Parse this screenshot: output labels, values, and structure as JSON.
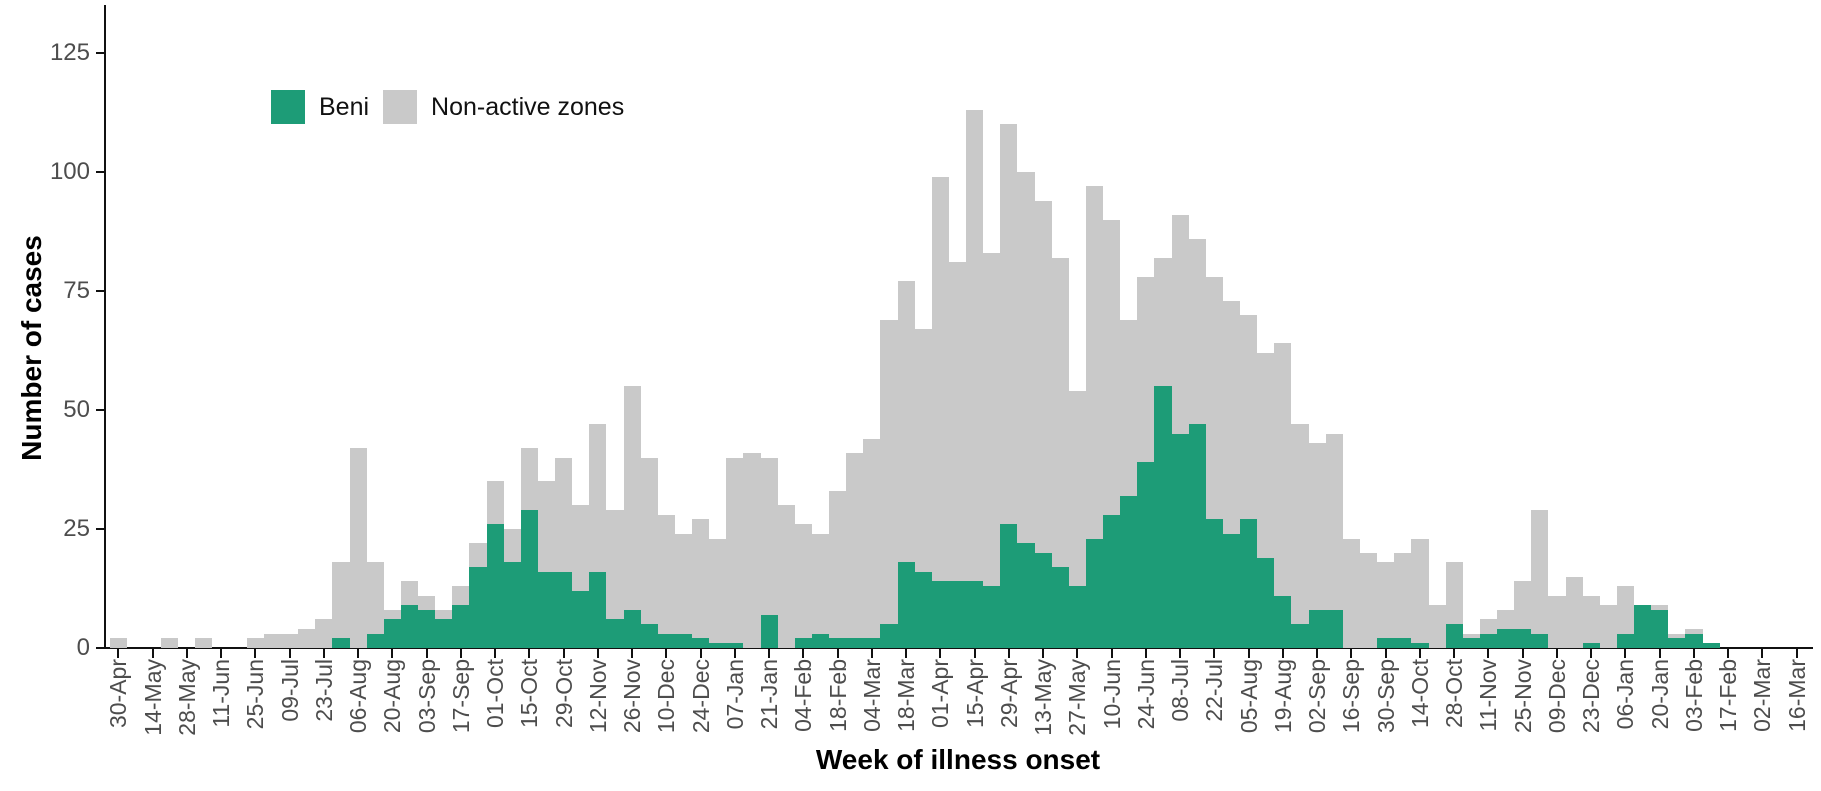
{
  "chart_data": {
    "type": "bar",
    "stacked": true,
    "title": "",
    "xlabel": "Week of illness onset",
    "ylabel": "Number of cases",
    "grid": false,
    "legend_position": "top-left-inside",
    "y_ticks": [
      0,
      25,
      50,
      75,
      100,
      125
    ],
    "ylim": [
      0,
      133
    ],
    "x_tick_every": 2,
    "categories": [
      "30-Apr",
      "07-May",
      "14-May",
      "21-May",
      "28-May",
      "04-Jun",
      "11-Jun",
      "18-Jun",
      "25-Jun",
      "02-Jul",
      "09-Jul",
      "16-Jul",
      "23-Jul",
      "30-Jul",
      "06-Aug",
      "13-Aug",
      "20-Aug",
      "27-Aug",
      "03-Sep",
      "10-Sep",
      "17-Sep",
      "24-Sep",
      "01-Oct",
      "08-Oct",
      "15-Oct",
      "22-Oct",
      "29-Oct",
      "05-Nov",
      "12-Nov",
      "19-Nov",
      "26-Nov",
      "03-Dec",
      "10-Dec",
      "17-Dec",
      "24-Dec",
      "31-Dec",
      "07-Jan",
      "14-Jan",
      "21-Jan",
      "28-Jan",
      "04-Feb",
      "11-Feb",
      "18-Feb",
      "25-Feb",
      "04-Mar",
      "11-Mar",
      "18-Mar",
      "25-Mar",
      "01-Apr",
      "08-Apr",
      "15-Apr",
      "22-Apr",
      "29-Apr",
      "06-May",
      "13-May",
      "20-May",
      "27-May",
      "03-Jun",
      "10-Jun",
      "17-Jun",
      "24-Jun",
      "01-Jul",
      "08-Jul",
      "15-Jul",
      "22-Jul",
      "29-Jul",
      "05-Aug",
      "12-Aug",
      "19-Aug",
      "26-Aug",
      "02-Sep",
      "09-Sep",
      "16-Sep",
      "23-Sep",
      "30-Sep",
      "07-Oct",
      "14-Oct",
      "21-Oct",
      "28-Oct",
      "04-Nov",
      "11-Nov",
      "18-Nov",
      "25-Nov",
      "02-Dec",
      "09-Dec",
      "16-Dec",
      "23-Dec",
      "30-Dec",
      "06-Jan",
      "13-Jan",
      "20-Jan",
      "27-Jan",
      "03-Feb",
      "10-Feb",
      "17-Feb",
      "24-Feb",
      "02-Mar",
      "09-Mar",
      "16-Mar"
    ],
    "series": [
      {
        "name": "Beni",
        "color": "#1d9c77",
        "values": [
          0,
          0,
          0,
          0,
          0,
          0,
          0,
          0,
          0,
          0,
          0,
          0,
          0,
          2,
          0,
          3,
          6,
          9,
          8,
          6,
          9,
          17,
          26,
          18,
          29,
          16,
          16,
          12,
          16,
          6,
          8,
          5,
          3,
          3,
          2,
          1,
          1,
          0,
          7,
          0,
          2,
          3,
          2,
          2,
          2,
          5,
          18,
          16,
          14,
          14,
          14,
          13,
          26,
          22,
          20,
          17,
          13,
          23,
          28,
          32,
          39,
          55,
          45,
          47,
          27,
          24,
          27,
          19,
          11,
          5,
          8,
          8,
          0,
          0,
          2,
          2,
          1,
          0,
          5,
          2,
          3,
          4,
          4,
          3,
          0,
          0,
          1,
          0,
          3,
          9,
          8,
          2,
          3,
          1,
          0,
          0,
          0,
          0,
          0
        ]
      },
      {
        "name": "Non-active zones",
        "color": "#c9c9c9",
        "values": [
          2,
          0,
          0,
          2,
          0,
          2,
          0,
          0,
          2,
          3,
          3,
          4,
          6,
          16,
          42,
          15,
          2,
          5,
          3,
          2,
          4,
          5,
          9,
          7,
          13,
          19,
          24,
          18,
          31,
          23,
          47,
          35,
          25,
          21,
          25,
          22,
          39,
          41,
          33,
          30,
          24,
          21,
          31,
          39,
          42,
          64,
          59,
          51,
          85,
          67,
          99,
          70,
          84,
          78,
          74,
          65,
          41,
          74,
          62,
          37,
          39,
          27,
          46,
          39,
          51,
          49,
          43,
          43,
          53,
          42,
          35,
          37,
          23,
          20,
          16,
          18,
          22,
          9,
          13,
          1,
          3,
          4,
          10,
          26,
          11,
          15,
          10,
          9,
          10,
          0,
          1,
          1,
          1,
          0,
          0,
          0,
          0,
          0,
          0
        ]
      }
    ]
  },
  "legend": {
    "items": [
      {
        "label": "Beni",
        "color": "#1d9c77"
      },
      {
        "label": "Non-active zones",
        "color": "#c9c9c9"
      }
    ]
  },
  "axes": {
    "x_title": "Week of illness onset",
    "y_title": "Number of cases"
  }
}
